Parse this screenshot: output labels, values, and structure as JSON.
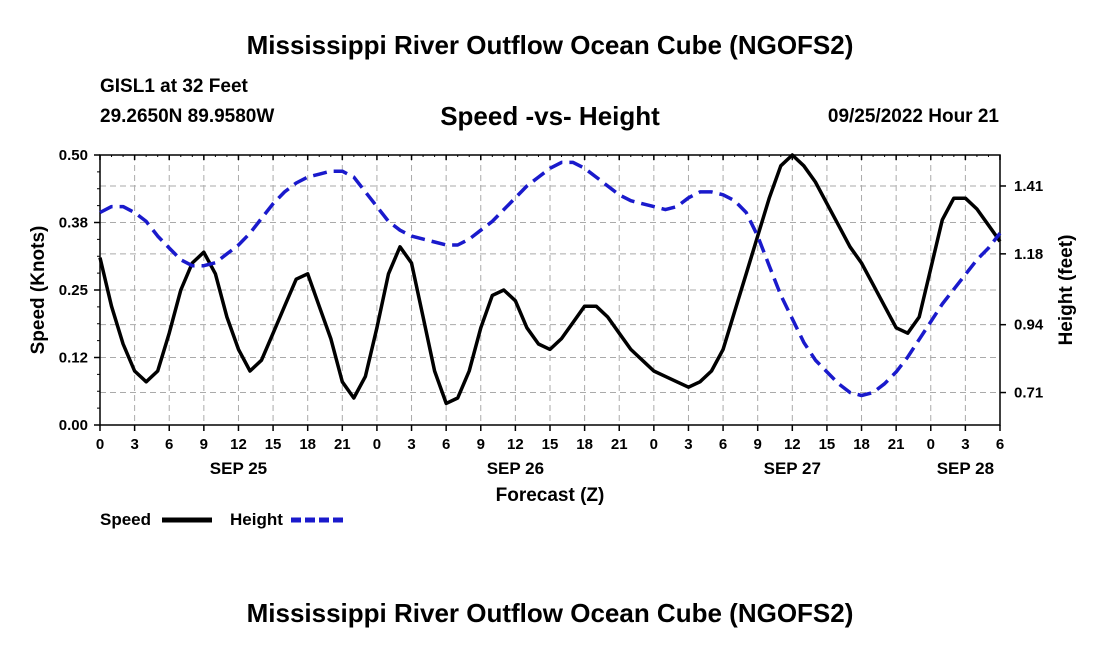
{
  "header": {
    "title": "Mississippi River Outflow Ocean Cube (NGOFS2)",
    "station": "GISL1 at 32 Feet",
    "coords": "29.2650N  89.9580W",
    "subtitle": "Speed -vs- Height",
    "datetime": "09/25/2022 Hour 21"
  },
  "footer": {
    "title": "Mississippi River Outflow Ocean Cube (NGOFS2)"
  },
  "colors": {
    "speed": "#000000",
    "height": "#1a1acc",
    "grid": "#aaaaaa"
  },
  "chart_data": {
    "type": "line",
    "title": "Speed -vs- Height",
    "xlabel": "Forecast (Z)",
    "ylabel": "Speed (Knots)",
    "y2label": "Height (feet)",
    "xlim_hours": [
      0,
      78
    ],
    "ylim": [
      0,
      0.5
    ],
    "y2lim": [
      0.6,
      1.515
    ],
    "grid": true,
    "legend_position": "bottom-left",
    "x_tick_labels": [
      "0",
      "3",
      "6",
      "9",
      "12",
      "15",
      "18",
      "21",
      "0",
      "3",
      "6",
      "9",
      "12",
      "15",
      "18",
      "21",
      "0",
      "3",
      "6",
      "9",
      "12",
      "15",
      "18",
      "21",
      "0",
      "3",
      "6"
    ],
    "date_labels": [
      {
        "label": "SEP 25",
        "hour": 12
      },
      {
        "label": "SEP 26",
        "hour": 36
      },
      {
        "label": "SEP 27",
        "hour": 60
      },
      {
        "label": "SEP 28",
        "hour": 75
      }
    ],
    "y_ticks": [
      0.0,
      0.125,
      0.25,
      0.375,
      0.5
    ],
    "y_tick_labels": [
      "0.00",
      "0.12",
      "0.25",
      "0.38",
      "0.50"
    ],
    "y2_ticks": [
      0.71,
      0.94,
      1.18,
      1.41
    ],
    "y2_tick_labels": [
      "0.71",
      "0.94",
      "1.18",
      "1.41"
    ],
    "series": [
      {
        "name": "Speed",
        "axis": "left",
        "style": "solid",
        "points": [
          [
            0,
            0.31
          ],
          [
            1,
            0.22
          ],
          [
            2,
            0.15
          ],
          [
            3,
            0.1
          ],
          [
            4,
            0.08
          ],
          [
            5,
            0.1
          ],
          [
            6,
            0.17
          ],
          [
            7,
            0.25
          ],
          [
            8,
            0.3
          ],
          [
            9,
            0.32
          ],
          [
            10,
            0.28
          ],
          [
            11,
            0.2
          ],
          [
            12,
            0.14
          ],
          [
            13,
            0.1
          ],
          [
            14,
            0.12
          ],
          [
            15,
            0.17
          ],
          [
            16,
            0.22
          ],
          [
            17,
            0.27
          ],
          [
            18,
            0.28
          ],
          [
            19,
            0.22
          ],
          [
            20,
            0.16
          ],
          [
            21,
            0.08
          ],
          [
            22,
            0.05
          ],
          [
            23,
            0.09
          ],
          [
            24,
            0.18
          ],
          [
            25,
            0.28
          ],
          [
            26,
            0.33
          ],
          [
            27,
            0.3
          ],
          [
            28,
            0.2
          ],
          [
            29,
            0.1
          ],
          [
            30,
            0.04
          ],
          [
            31,
            0.05
          ],
          [
            32,
            0.1
          ],
          [
            33,
            0.18
          ],
          [
            34,
            0.24
          ],
          [
            35,
            0.25
          ],
          [
            36,
            0.23
          ],
          [
            37,
            0.18
          ],
          [
            38,
            0.15
          ],
          [
            39,
            0.14
          ],
          [
            40,
            0.16
          ],
          [
            41,
            0.19
          ],
          [
            42,
            0.22
          ],
          [
            43,
            0.22
          ],
          [
            44,
            0.2
          ],
          [
            45,
            0.17
          ],
          [
            46,
            0.14
          ],
          [
            47,
            0.12
          ],
          [
            48,
            0.1
          ],
          [
            49,
            0.09
          ],
          [
            50,
            0.08
          ],
          [
            51,
            0.07
          ],
          [
            52,
            0.08
          ],
          [
            53,
            0.1
          ],
          [
            54,
            0.14
          ],
          [
            55,
            0.21
          ],
          [
            56,
            0.28
          ],
          [
            57,
            0.35
          ],
          [
            58,
            0.42
          ],
          [
            59,
            0.48
          ],
          [
            60,
            0.5
          ],
          [
            61,
            0.48
          ],
          [
            62,
            0.45
          ],
          [
            63,
            0.41
          ],
          [
            64,
            0.37
          ],
          [
            65,
            0.33
          ],
          [
            66,
            0.3
          ],
          [
            67,
            0.26
          ],
          [
            68,
            0.22
          ],
          [
            69,
            0.18
          ],
          [
            70,
            0.17
          ],
          [
            71,
            0.2
          ],
          [
            72,
            0.29
          ],
          [
            73,
            0.38
          ],
          [
            74,
            0.42
          ],
          [
            75,
            0.42
          ],
          [
            76,
            0.4
          ],
          [
            77,
            0.37
          ],
          [
            78,
            0.34
          ]
        ]
      },
      {
        "name": "Height",
        "axis": "right",
        "style": "dashed",
        "points": [
          [
            0,
            1.32
          ],
          [
            1,
            1.34
          ],
          [
            2,
            1.34
          ],
          [
            3,
            1.32
          ],
          [
            4,
            1.29
          ],
          [
            5,
            1.24
          ],
          [
            6,
            1.2
          ],
          [
            7,
            1.16
          ],
          [
            8,
            1.14
          ],
          [
            9,
            1.14
          ],
          [
            10,
            1.15
          ],
          [
            11,
            1.18
          ],
          [
            12,
            1.21
          ],
          [
            13,
            1.25
          ],
          [
            14,
            1.3
          ],
          [
            15,
            1.35
          ],
          [
            16,
            1.39
          ],
          [
            17,
            1.42
          ],
          [
            18,
            1.44
          ],
          [
            19,
            1.45
          ],
          [
            20,
            1.46
          ],
          [
            21,
            1.46
          ],
          [
            22,
            1.44
          ],
          [
            23,
            1.39
          ],
          [
            24,
            1.34
          ],
          [
            25,
            1.29
          ],
          [
            26,
            1.26
          ],
          [
            27,
            1.24
          ],
          [
            28,
            1.23
          ],
          [
            29,
            1.22
          ],
          [
            30,
            1.21
          ],
          [
            31,
            1.21
          ],
          [
            32,
            1.23
          ],
          [
            33,
            1.26
          ],
          [
            34,
            1.29
          ],
          [
            35,
            1.33
          ],
          [
            36,
            1.37
          ],
          [
            37,
            1.41
          ],
          [
            38,
            1.44
          ],
          [
            39,
            1.47
          ],
          [
            40,
            1.49
          ],
          [
            41,
            1.49
          ],
          [
            42,
            1.47
          ],
          [
            43,
            1.44
          ],
          [
            44,
            1.41
          ],
          [
            45,
            1.38
          ],
          [
            46,
            1.36
          ],
          [
            47,
            1.35
          ],
          [
            48,
            1.34
          ],
          [
            49,
            1.33
          ],
          [
            50,
            1.34
          ],
          [
            51,
            1.37
          ],
          [
            52,
            1.39
          ],
          [
            53,
            1.39
          ],
          [
            54,
            1.38
          ],
          [
            55,
            1.36
          ],
          [
            56,
            1.32
          ],
          [
            57,
            1.24
          ],
          [
            58,
            1.14
          ],
          [
            59,
            1.04
          ],
          [
            60,
            0.96
          ],
          [
            61,
            0.88
          ],
          [
            62,
            0.82
          ],
          [
            63,
            0.78
          ],
          [
            64,
            0.74
          ],
          [
            65,
            0.71
          ],
          [
            66,
            0.7
          ],
          [
            67,
            0.71
          ],
          [
            68,
            0.74
          ],
          [
            69,
            0.78
          ],
          [
            70,
            0.83
          ],
          [
            71,
            0.89
          ],
          [
            72,
            0.95
          ],
          [
            73,
            1.01
          ],
          [
            74,
            1.06
          ],
          [
            75,
            1.11
          ],
          [
            76,
            1.16
          ],
          [
            77,
            1.2
          ],
          [
            78,
            1.25
          ]
        ]
      }
    ]
  }
}
